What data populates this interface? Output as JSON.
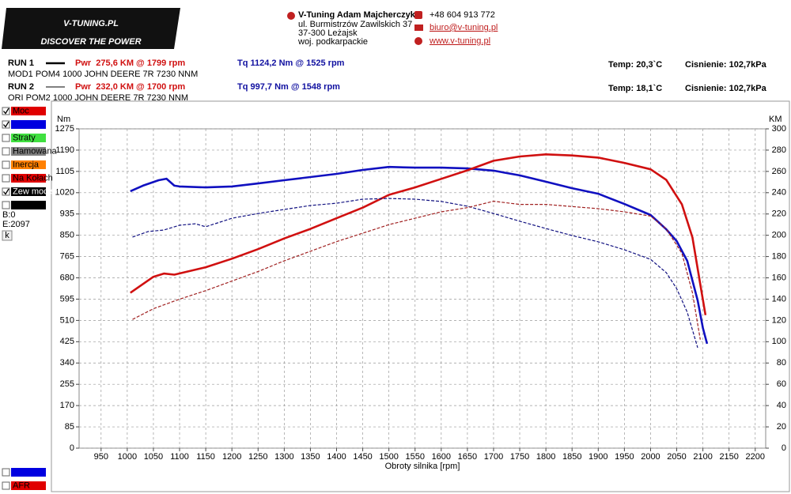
{
  "header": {
    "logo": "V-TUNING.PL",
    "slogan": "DISCOVER THE POWER",
    "company": "V-Tuning Adam Majcherczyk",
    "street": "ul. Burmistrzów Zawilskich 37",
    "city": "37-300 Leżajsk",
    "region": "woj. podkarpackie",
    "phone": "+48 604 913 772",
    "email": "biuro@v-tuning.pl",
    "web": "www.v-tuning.pl"
  },
  "runs": [
    {
      "label": "RUN 1",
      "pwr": "Pwr  275,6 KM @ 1799 rpm",
      "tq": "Tq 1124,2 Nm @ 1525 rpm",
      "temp": "Temp: 20,3`C",
      "pressure": "Cisnienie: 102,7kPa",
      "desc": "MOD1 POM4 1000 JOHN DEERE 7R 7230 NNM"
    },
    {
      "label": "RUN 2",
      "pwr": "Pwr  232,0 KM @ 1700 rpm",
      "tq": "Tq 997,7 Nm @ 1548 rpm",
      "temp": "Temp: 18,1`C",
      "pressure": "Cisnienie: 102,7kPa",
      "desc": "ORI POM2 1000 JOHN DEERE 7R 7230 NNM"
    }
  ],
  "sidebar": {
    "items": [
      {
        "label": "Moc",
        "color": "#e00000",
        "checked": true
      },
      {
        "color": "#0000e0",
        "checked": true
      },
      {
        "label": "Straty",
        "color": "#40e040",
        "checked": false
      },
      {
        "label": "Hamowana",
        "color": "#808080",
        "checked": false
      },
      {
        "label": "Inercja",
        "color": "#ff8000",
        "checked": false
      },
      {
        "label": "Na Kołach",
        "color": "#e00000",
        "checked": false
      },
      {
        "label": "Zew moc str",
        "color": "#000000",
        "checked": true
      },
      {
        "color": "#000000",
        "checked": false
      }
    ],
    "b": "B:0",
    "e": "E:2097",
    "button": "k",
    "bottom_items": [
      {
        "color": "#0000e0",
        "checked": false
      },
      {
        "label": "AFR",
        "color": "#e00000",
        "checked": false
      }
    ]
  },
  "chart_data": {
    "type": "line",
    "ylabel": "Nm",
    "y2label": "KM",
    "xlabel": "Obroty silnika [rpm]",
    "xlim": [
      908,
      2220
    ],
    "xticks": [
      950,
      1000,
      1050,
      1100,
      1150,
      1200,
      1250,
      1300,
      1350,
      1400,
      1450,
      1500,
      1550,
      1600,
      1650,
      1700,
      1750,
      1800,
      1850,
      1900,
      1950,
      2000,
      2050,
      2100,
      2150,
      2200
    ],
    "ylim": [
      0,
      1275
    ],
    "yticks": [
      0,
      85,
      170,
      255,
      340,
      425,
      510,
      595,
      680,
      765,
      850,
      935,
      1020,
      1105,
      1190,
      1275
    ],
    "y2lim": [
      0,
      300
    ],
    "y2ticks": [
      0,
      20,
      40,
      60,
      80,
      100,
      120,
      140,
      160,
      180,
      200,
      220,
      240,
      260,
      280,
      300
    ],
    "grid": true,
    "series": [
      {
        "name": "RUN 1 Tq",
        "color": "#1010c0",
        "dashed": false,
        "axis": "y",
        "x": [
          1006,
          1030,
          1060,
          1075,
          1090,
          1100,
          1150,
          1200,
          1250,
          1300,
          1400,
          1450,
          1500,
          1550,
          1600,
          1650,
          1700,
          1750,
          1800,
          1850,
          1900,
          1950,
          2000,
          2030,
          2050,
          2070,
          2090,
          2100,
          2108
        ],
        "values": [
          1026,
          1048,
          1070,
          1076,
          1048,
          1045,
          1041,
          1045,
          1057,
          1070,
          1095,
          1111,
          1123,
          1120,
          1120,
          1117,
          1108,
          1089,
          1064,
          1038,
          1016,
          975,
          931,
          874,
          827,
          748,
          590,
          480,
          417
        ]
      },
      {
        "name": "RUN 1 Pwr",
        "color": "#d01010",
        "dashed": false,
        "axis": "y2",
        "x": [
          1006,
          1050,
          1070,
          1090,
          1150,
          1200,
          1250,
          1300,
          1350,
          1400,
          1450,
          1500,
          1550,
          1600,
          1650,
          1700,
          1750,
          1800,
          1850,
          1900,
          1950,
          2000,
          2030,
          2060,
          2080,
          2095,
          2105
        ],
        "values": [
          146,
          161,
          164,
          163,
          170,
          178,
          187,
          197,
          206,
          216,
          226,
          238,
          245,
          253,
          261,
          270,
          274,
          276,
          275,
          273,
          268,
          262,
          252,
          229,
          198,
          154,
          125
        ]
      },
      {
        "name": "RUN 2 Tq",
        "color": "#101080",
        "dashed": true,
        "axis": "y",
        "x": [
          1010,
          1040,
          1070,
          1100,
          1130,
          1150,
          1200,
          1250,
          1300,
          1350,
          1400,
          1450,
          1500,
          1550,
          1600,
          1650,
          1700,
          1750,
          1800,
          1850,
          1900,
          1950,
          2000,
          2030,
          2050,
          2070,
          2090
        ],
        "values": [
          843,
          865,
          871,
          890,
          896,
          884,
          918,
          937,
          953,
          969,
          978,
          994,
          997,
          994,
          985,
          966,
          937,
          906,
          877,
          849,
          824,
          792,
          754,
          701,
          637,
          543,
          401
        ]
      },
      {
        "name": "RUN 2 Pwr",
        "color": "#a02020",
        "dashed": true,
        "axis": "y2",
        "x": [
          1010,
          1050,
          1100,
          1150,
          1200,
          1250,
          1300,
          1350,
          1400,
          1450,
          1500,
          1550,
          1600,
          1650,
          1700,
          1750,
          1800,
          1850,
          1900,
          1950,
          2000,
          2030,
          2060,
          2080,
          2095
        ],
        "values": [
          121,
          131,
          140,
          148,
          157,
          166,
          176,
          185,
          194,
          202,
          210,
          216,
          222,
          226,
          232,
          229,
          229,
          227,
          225,
          222,
          218,
          206,
          183,
          146,
          102
        ]
      }
    ]
  }
}
